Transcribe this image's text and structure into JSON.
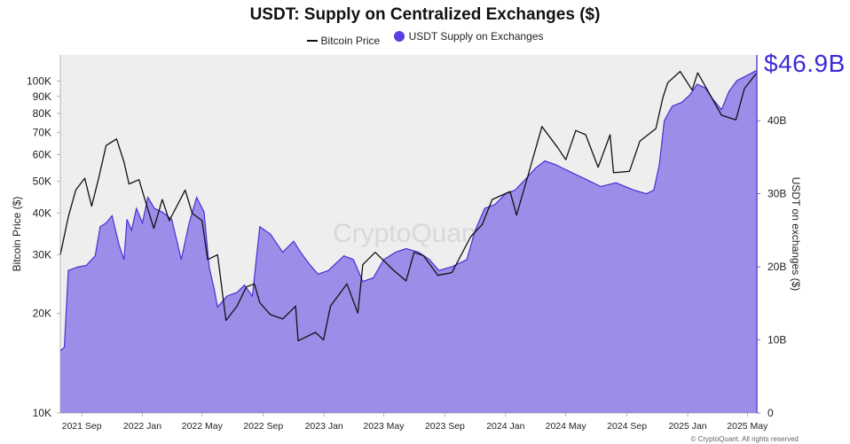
{
  "title": "USDT: Supply on Centralized Exchanges ($)",
  "legend": {
    "price_label": "Bitcoin Price",
    "supply_label": "USDT Supply on Exchanges"
  },
  "callout_value": "$46.9B",
  "watermark": "CryptoQuant",
  "footer": "© CryptoQuant. All rights reserved",
  "colors": {
    "supply_fill": "#9a8ee8",
    "supply_line": "#4a2fd6",
    "price_line": "#111111",
    "plot_bg": "#eeeeee",
    "callout": "#3b2bd9"
  },
  "chart_data": {
    "type": "area",
    "title": "USDT: Supply on Centralized Exchanges ($)",
    "xlabel": "",
    "ylabel_left": "Bitcoin Price ($)",
    "ylabel_right": "USDT on exchanges ($)",
    "x_range": [
      "2021-07-20",
      "2025-05-20"
    ],
    "x_ticks": [
      "2021 Sep",
      "2022 Jan",
      "2022 May",
      "2022 Sep",
      "2023 Jan",
      "2023 May",
      "2023 Sep",
      "2024 Jan",
      "2024 May",
      "2024 Sep",
      "2025 Jan",
      "2025 May"
    ],
    "y_left": {
      "scale": "log",
      "range": [
        10000,
        120000
      ],
      "ticks": [
        "10K",
        "20K",
        "30K",
        "40K",
        "50K",
        "60K",
        "70K",
        "80K",
        "90K",
        "100K"
      ]
    },
    "y_right": {
      "scale": "linear",
      "range": [
        0,
        49
      ],
      "ticks": [
        "0",
        "10B",
        "20B",
        "30B",
        "40B"
      ]
    },
    "legend_position": "top-center",
    "series": [
      {
        "name": "Bitcoin Price",
        "axis": "left",
        "type": "line",
        "points": [
          [
            "2021-07-20",
            30000
          ],
          [
            "2021-08-05",
            39000
          ],
          [
            "2021-08-20",
            47000
          ],
          [
            "2021-09-07",
            51000
          ],
          [
            "2021-09-21",
            42000
          ],
          [
            "2021-10-05",
            51000
          ],
          [
            "2021-10-20",
            64000
          ],
          [
            "2021-11-10",
            67000
          ],
          [
            "2021-11-25",
            57000
          ],
          [
            "2021-12-05",
            49000
          ],
          [
            "2021-12-25",
            50500
          ],
          [
            "2022-01-10",
            42000
          ],
          [
            "2022-01-24",
            36000
          ],
          [
            "2022-02-10",
            44000
          ],
          [
            "2022-02-24",
            38000
          ],
          [
            "2022-03-28",
            47000
          ],
          [
            "2022-04-11",
            40000
          ],
          [
            "2022-05-01",
            38000
          ],
          [
            "2022-05-12",
            29000
          ],
          [
            "2022-06-01",
            30000
          ],
          [
            "2022-06-18",
            19000
          ],
          [
            "2022-07-10",
            21000
          ],
          [
            "2022-07-29",
            24000
          ],
          [
            "2022-08-14",
            24500
          ],
          [
            "2022-08-25",
            21500
          ],
          [
            "2022-09-15",
            19800
          ],
          [
            "2022-10-10",
            19200
          ],
          [
            "2022-11-05",
            21000
          ],
          [
            "2022-11-10",
            16500
          ],
          [
            "2022-12-15",
            17500
          ],
          [
            "2022-12-31",
            16600
          ],
          [
            "2023-01-14",
            21000
          ],
          [
            "2023-02-16",
            24500
          ],
          [
            "2023-03-10",
            20000
          ],
          [
            "2023-03-20",
            28000
          ],
          [
            "2023-04-14",
            30500
          ],
          [
            "2023-05-20",
            27000
          ],
          [
            "2023-06-15",
            25000
          ],
          [
            "2023-07-01",
            30500
          ],
          [
            "2023-07-20",
            29800
          ],
          [
            "2023-08-18",
            26000
          ],
          [
            "2023-09-15",
            26500
          ],
          [
            "2023-10-23",
            34000
          ],
          [
            "2023-11-15",
            37000
          ],
          [
            "2023-12-05",
            44000
          ],
          [
            "2024-01-10",
            46500
          ],
          [
            "2024-01-23",
            39500
          ],
          [
            "2024-02-15",
            52000
          ],
          [
            "2024-03-14",
            73000
          ],
          [
            "2024-04-15",
            63000
          ],
          [
            "2024-05-01",
            58000
          ],
          [
            "2024-05-21",
            71000
          ],
          [
            "2024-06-10",
            69000
          ],
          [
            "2024-07-05",
            55000
          ],
          [
            "2024-07-29",
            69000
          ],
          [
            "2024-08-05",
            53000
          ],
          [
            "2024-09-06",
            53500
          ],
          [
            "2024-09-27",
            66000
          ],
          [
            "2024-10-29",
            72000
          ],
          [
            "2024-11-12",
            89000
          ],
          [
            "2024-11-22",
            99000
          ],
          [
            "2024-12-17",
            107000
          ],
          [
            "2025-01-10",
            94000
          ],
          [
            "2025-01-21",
            106000
          ],
          [
            "2025-02-03",
            98000
          ],
          [
            "2025-02-28",
            84000
          ],
          [
            "2025-03-10",
            79000
          ],
          [
            "2025-04-08",
            76500
          ],
          [
            "2025-04-25",
            95000
          ],
          [
            "2025-05-20",
            106000
          ]
        ]
      },
      {
        "name": "USDT Supply on Exchanges",
        "axis": "right",
        "type": "area",
        "unit": "B",
        "points": [
          [
            "2021-07-20",
            8.5
          ],
          [
            "2021-07-28",
            9.0
          ],
          [
            "2021-08-05",
            19.5
          ],
          [
            "2021-08-25",
            20.0
          ],
          [
            "2021-09-10",
            20.2
          ],
          [
            "2021-09-28",
            21.5
          ],
          [
            "2021-10-08",
            25.5
          ],
          [
            "2021-10-20",
            26.0
          ],
          [
            "2021-11-01",
            27.0
          ],
          [
            "2021-11-15",
            23.0
          ],
          [
            "2021-11-25",
            21.0
          ],
          [
            "2021-12-01",
            26.5
          ],
          [
            "2021-12-10",
            25.0
          ],
          [
            "2021-12-20",
            28.0
          ],
          [
            "2022-01-01",
            26.0
          ],
          [
            "2022-01-12",
            29.5
          ],
          [
            "2022-01-25",
            28.0
          ],
          [
            "2022-02-10",
            27.5
          ],
          [
            "2022-03-01",
            26.5
          ],
          [
            "2022-03-20",
            21.0
          ],
          [
            "2022-04-05",
            26.0
          ],
          [
            "2022-04-20",
            29.5
          ],
          [
            "2022-05-05",
            27.5
          ],
          [
            "2022-05-15",
            20.0
          ],
          [
            "2022-05-25",
            17.0
          ],
          [
            "2022-06-01",
            14.5
          ],
          [
            "2022-06-20",
            16.0
          ],
          [
            "2022-07-10",
            16.5
          ],
          [
            "2022-07-25",
            17.5
          ],
          [
            "2022-08-10",
            16.0
          ],
          [
            "2022-08-25",
            25.5
          ],
          [
            "2022-09-15",
            24.5
          ],
          [
            "2022-10-10",
            22.0
          ],
          [
            "2022-11-01",
            23.5
          ],
          [
            "2022-11-15",
            22.0
          ],
          [
            "2022-12-01",
            20.5
          ],
          [
            "2022-12-20",
            19.0
          ],
          [
            "2023-01-10",
            19.5
          ],
          [
            "2023-02-10",
            21.5
          ],
          [
            "2023-03-01",
            21.0
          ],
          [
            "2023-03-20",
            18.0
          ],
          [
            "2023-04-10",
            18.5
          ],
          [
            "2023-05-01",
            21.0
          ],
          [
            "2023-05-25",
            22.0
          ],
          [
            "2023-06-15",
            22.5
          ],
          [
            "2023-07-10",
            22.0
          ],
          [
            "2023-08-01",
            21.0
          ],
          [
            "2023-08-20",
            19.5
          ],
          [
            "2023-09-15",
            20.0
          ],
          [
            "2023-10-15",
            21.0
          ],
          [
            "2023-11-01",
            25.0
          ],
          [
            "2023-11-20",
            28.0
          ],
          [
            "2023-12-10",
            28.5
          ],
          [
            "2024-01-01",
            30.0
          ],
          [
            "2024-01-20",
            30.5
          ],
          [
            "2024-02-10",
            32.0
          ],
          [
            "2024-03-01",
            33.5
          ],
          [
            "2024-03-20",
            34.5
          ],
          [
            "2024-04-10",
            34.0
          ],
          [
            "2024-05-10",
            33.0
          ],
          [
            "2024-06-10",
            32.0
          ],
          [
            "2024-07-10",
            31.0
          ],
          [
            "2024-08-10",
            31.5
          ],
          [
            "2024-09-15",
            30.5
          ],
          [
            "2024-10-10",
            30.0
          ],
          [
            "2024-10-25",
            30.5
          ],
          [
            "2024-11-05",
            34.0
          ],
          [
            "2024-11-15",
            40.0
          ],
          [
            "2024-12-01",
            42.0
          ],
          [
            "2024-12-20",
            42.5
          ],
          [
            "2025-01-05",
            43.5
          ],
          [
            "2025-01-20",
            45.0
          ],
          [
            "2025-02-05",
            44.5
          ],
          [
            "2025-02-20",
            43.0
          ],
          [
            "2025-03-10",
            41.5
          ],
          [
            "2025-03-25",
            44.0
          ],
          [
            "2025-04-10",
            45.5
          ],
          [
            "2025-04-25",
            46.0
          ],
          [
            "2025-05-20",
            46.9
          ]
        ]
      }
    ]
  }
}
